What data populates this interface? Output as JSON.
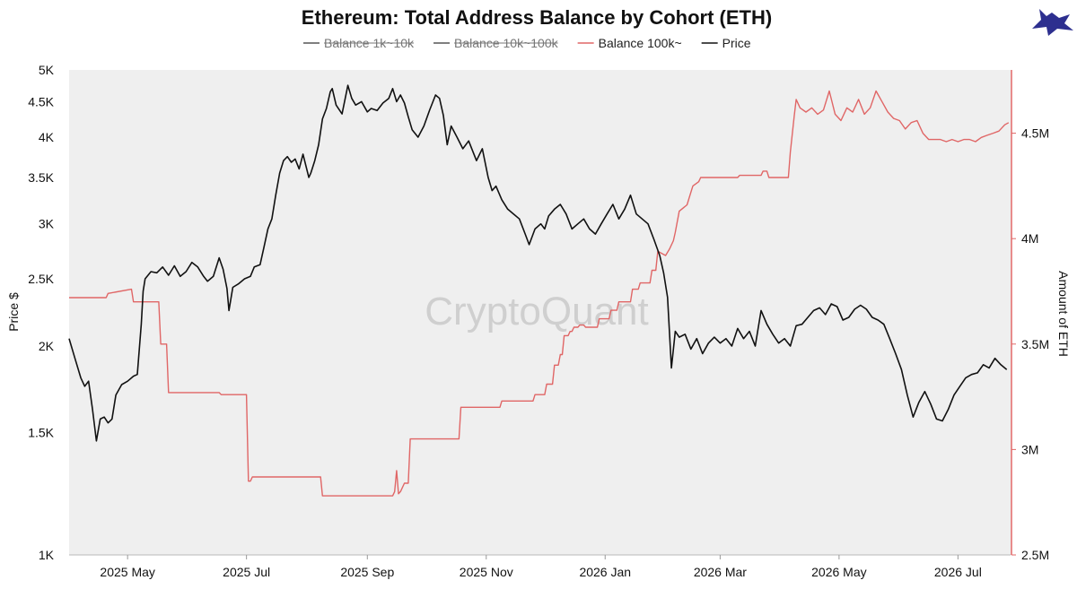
{
  "chart_data": {
    "type": "line",
    "title": "Ethereum: Total Address Balance by Cohort (ETH)",
    "watermark": "CryptoQuant",
    "legend": [
      {
        "label": "Balance 1k~10k",
        "color": "#555555",
        "hidden": true
      },
      {
        "label": "Balance 10k~100k",
        "color": "#555555",
        "hidden": true
      },
      {
        "label": "Balance 100k~",
        "color": "#e06666",
        "hidden": false
      },
      {
        "label": "Price",
        "color": "#111111",
        "hidden": false
      }
    ],
    "xlim": [
      "2025-04-01",
      "2026-07-28"
    ],
    "x_ticks": [
      {
        "date": "2025-05-01",
        "label": "2025 May"
      },
      {
        "date": "2025-07-01",
        "label": "2025 Jul"
      },
      {
        "date": "2025-09-01",
        "label": "2025 Sep"
      },
      {
        "date": "2025-11-01",
        "label": "2025 Nov"
      },
      {
        "date": "2026-01-01",
        "label": "2026 Jan"
      },
      {
        "date": "2026-03-01",
        "label": "2026 Mar"
      },
      {
        "date": "2026-05-01",
        "label": "2026 May"
      },
      {
        "date": "2026-07-01",
        "label": "2026 Jul"
      }
    ],
    "y_left": {
      "label": "Price $",
      "scale": "log",
      "lim": [
        1000,
        5000
      ],
      "ticks": [
        {
          "value": 1000,
          "label": "1K"
        },
        {
          "value": 1500,
          "label": "1.5K"
        },
        {
          "value": 2000,
          "label": "2K"
        },
        {
          "value": 2500,
          "label": "2.5K"
        },
        {
          "value": 3000,
          "label": "3K"
        },
        {
          "value": 3500,
          "label": "3.5K"
        },
        {
          "value": 4000,
          "label": "4K"
        },
        {
          "value": 4500,
          "label": "4.5K"
        },
        {
          "value": 5000,
          "label": "5K"
        }
      ]
    },
    "y_right": {
      "label": "Amount of ETH",
      "scale": "linear",
      "lim": [
        2500000,
        4800000
      ],
      "ticks": [
        {
          "value": 2500000,
          "label": "2.5M"
        },
        {
          "value": 3000000,
          "label": "3M"
        },
        {
          "value": 3500000,
          "label": "3.5M"
        },
        {
          "value": 4000000,
          "label": "4M"
        },
        {
          "value": 4500000,
          "label": "4.5M"
        }
      ]
    },
    "series": [
      {
        "name": "Price",
        "axis": "left",
        "color": "#111111",
        "x": [
          "2025-04-01",
          "2025-04-04",
          "2025-04-07",
          "2025-04-09",
          "2025-04-11",
          "2025-04-13",
          "2025-04-15",
          "2025-04-17",
          "2025-04-19",
          "2025-04-21",
          "2025-04-23",
          "2025-04-25",
          "2025-04-28",
          "2025-05-01",
          "2025-05-04",
          "2025-05-06",
          "2025-05-08",
          "2025-05-09",
          "2025-05-10",
          "2025-05-13",
          "2025-05-16",
          "2025-05-19",
          "2025-05-22",
          "2025-05-25",
          "2025-05-28",
          "2025-05-31",
          "2025-06-03",
          "2025-06-06",
          "2025-06-09",
          "2025-06-11",
          "2025-06-14",
          "2025-06-17",
          "2025-06-19",
          "2025-06-21",
          "2025-06-22",
          "2025-06-24",
          "2025-06-27",
          "2025-06-30",
          "2025-07-03",
          "2025-07-05",
          "2025-07-08",
          "2025-07-10",
          "2025-07-12",
          "2025-07-14",
          "2025-07-16",
          "2025-07-18",
          "2025-07-20",
          "2025-07-22",
          "2025-07-24",
          "2025-07-26",
          "2025-07-28",
          "2025-07-30",
          "2025-08-02",
          "2025-08-03",
          "2025-08-05",
          "2025-08-07",
          "2025-08-09",
          "2025-08-11",
          "2025-08-13",
          "2025-08-14",
          "2025-08-16",
          "2025-08-19",
          "2025-08-22",
          "2025-08-24",
          "2025-08-26",
          "2025-08-29",
          "2025-09-01",
          "2025-09-03",
          "2025-09-06",
          "2025-09-09",
          "2025-09-12",
          "2025-09-14",
          "2025-09-16",
          "2025-09-18",
          "2025-09-20",
          "2025-09-22",
          "2025-09-24",
          "2025-09-27",
          "2025-09-30",
          "2025-10-03",
          "2025-10-06",
          "2025-10-08",
          "2025-10-10",
          "2025-10-12",
          "2025-10-14",
          "2025-10-17",
          "2025-10-20",
          "2025-10-23",
          "2025-10-27",
          "2025-10-30",
          "2025-11-02",
          "2025-11-04",
          "2025-11-06",
          "2025-11-09",
          "2025-11-12",
          "2025-11-15",
          "2025-11-18",
          "2025-11-21",
          "2025-11-23",
          "2025-11-26",
          "2025-11-29",
          "2025-12-01",
          "2025-12-03",
          "2025-12-06",
          "2025-12-09",
          "2025-12-12",
          "2025-12-15",
          "2025-12-18",
          "2025-12-21",
          "2025-12-24",
          "2025-12-27",
          "2025-12-30",
          "2026-01-02",
          "2026-01-05",
          "2026-01-08",
          "2026-01-11",
          "2026-01-14",
          "2026-01-17",
          "2026-01-20",
          "2026-01-23",
          "2026-01-26",
          "2026-01-29",
          "2026-01-31",
          "2026-02-02",
          "2026-02-04",
          "2026-02-06",
          "2026-02-08",
          "2026-02-11",
          "2026-02-14",
          "2026-02-17",
          "2026-02-20",
          "2026-02-23",
          "2026-02-26",
          "2026-03-01",
          "2026-03-04",
          "2026-03-07",
          "2026-03-10",
          "2026-03-13",
          "2026-03-16",
          "2026-03-19",
          "2026-03-22",
          "2026-03-25",
          "2026-03-28",
          "2026-03-31",
          "2026-04-03",
          "2026-04-06",
          "2026-04-09",
          "2026-04-12",
          "2026-04-15",
          "2026-04-18",
          "2026-04-21",
          "2026-04-24",
          "2026-04-27",
          "2026-04-30",
          "2026-05-03",
          "2026-05-06",
          "2026-05-09",
          "2026-05-12",
          "2026-05-15",
          "2026-05-18",
          "2026-05-21",
          "2026-05-24",
          "2026-05-27",
          "2026-05-30",
          "2026-06-02",
          "2026-06-05",
          "2026-06-08",
          "2026-06-11",
          "2026-06-14",
          "2026-06-17",
          "2026-06-20",
          "2026-06-23",
          "2026-06-26",
          "2026-06-29",
          "2026-07-02",
          "2026-07-05",
          "2026-07-08",
          "2026-07-11",
          "2026-07-14",
          "2026-07-17",
          "2026-07-20",
          "2026-07-23",
          "2026-07-26"
        ],
        "y": [
          2050,
          1920,
          1800,
          1750,
          1780,
          1620,
          1460,
          1570,
          1580,
          1550,
          1570,
          1700,
          1760,
          1780,
          1810,
          1820,
          2150,
          2400,
          2500,
          2560,
          2550,
          2600,
          2530,
          2610,
          2520,
          2560,
          2640,
          2600,
          2520,
          2480,
          2520,
          2680,
          2580,
          2420,
          2250,
          2430,
          2460,
          2500,
          2520,
          2600,
          2620,
          2780,
          2950,
          3050,
          3300,
          3550,
          3700,
          3750,
          3680,
          3720,
          3600,
          3780,
          3500,
          3550,
          3700,
          3900,
          4250,
          4400,
          4650,
          4700,
          4450,
          4320,
          4750,
          4550,
          4450,
          4500,
          4350,
          4400,
          4370,
          4480,
          4550,
          4700,
          4500,
          4600,
          4480,
          4280,
          4100,
          4000,
          4150,
          4380,
          4600,
          4550,
          4300,
          3900,
          4150,
          4000,
          3850,
          3950,
          3700,
          3850,
          3500,
          3350,
          3400,
          3250,
          3150,
          3100,
          3050,
          2900,
          2800,
          2950,
          3000,
          2950,
          3080,
          3150,
          3200,
          3100,
          2950,
          3000,
          3050,
          2950,
          2900,
          3000,
          3100,
          3200,
          3050,
          3150,
          3300,
          3100,
          3050,
          3000,
          2850,
          2700,
          2550,
          2350,
          1860,
          2100,
          2060,
          2080,
          1980,
          2050,
          1950,
          2020,
          2060,
          2020,
          2050,
          2000,
          2120,
          2050,
          2100,
          2000,
          2250,
          2150,
          2080,
          2020,
          2050,
          2000,
          2140,
          2150,
          2200,
          2250,
          2270,
          2220,
          2300,
          2280,
          2180,
          2200,
          2260,
          2290,
          2260,
          2200,
          2180,
          2150,
          2050,
          1950,
          1850,
          1700,
          1580,
          1660,
          1720,
          1650,
          1570,
          1560,
          1620,
          1700,
          1750,
          1800,
          1820,
          1830,
          1880,
          1860,
          1920,
          1880,
          1850
        ]
      },
      {
        "name": "Balance 100k~",
        "axis": "right",
        "color": "#e06666",
        "x": [
          "2025-04-01",
          "2025-04-20",
          "2025-04-21",
          "2025-05-03",
          "2025-05-04",
          "2025-05-17",
          "2025-05-18",
          "2025-05-21",
          "2025-05-22",
          "2025-06-17",
          "2025-06-18",
          "2025-07-01",
          "2025-07-02",
          "2025-07-03",
          "2025-07-04",
          "2025-08-08",
          "2025-08-09",
          "2025-09-14",
          "2025-09-15",
          "2025-09-16",
          "2025-09-17",
          "2025-09-18",
          "2025-09-20",
          "2025-09-22",
          "2025-09-23",
          "2025-10-18",
          "2025-10-19",
          "2025-11-08",
          "2025-11-09",
          "2025-11-25",
          "2025-11-26",
          "2025-12-01",
          "2025-12-02",
          "2025-12-05",
          "2025-12-06",
          "2025-12-08",
          "2025-12-09",
          "2025-12-10",
          "2025-12-11",
          "2025-12-13",
          "2025-12-14",
          "2025-12-15",
          "2025-12-16",
          "2025-12-18",
          "2025-12-19",
          "2025-12-21",
          "2025-12-22",
          "2025-12-28",
          "2025-12-29",
          "2026-01-03",
          "2026-01-04",
          "2026-01-07",
          "2026-01-08",
          "2026-01-14",
          "2026-01-15",
          "2026-01-18",
          "2026-01-19",
          "2026-01-24",
          "2026-01-25",
          "2026-01-27",
          "2026-01-28",
          "2026-02-01",
          "2026-02-03",
          "2026-02-05",
          "2026-02-06",
          "2026-02-08",
          "2026-02-12",
          "2026-02-14",
          "2026-02-15",
          "2026-02-18",
          "2026-02-19",
          "2026-03-10",
          "2026-03-11",
          "2026-03-22",
          "2026-03-23",
          "2026-03-25",
          "2026-03-26",
          "2026-04-05",
          "2026-04-06",
          "2026-04-08",
          "2026-04-09",
          "2026-04-11",
          "2026-04-14",
          "2026-04-17",
          "2026-04-20",
          "2026-04-23",
          "2026-04-26",
          "2026-04-29",
          "2026-05-02",
          "2026-05-05",
          "2026-05-08",
          "2026-05-11",
          "2026-05-14",
          "2026-05-17",
          "2026-05-20",
          "2026-05-23",
          "2026-05-26",
          "2026-05-29",
          "2026-06-01",
          "2026-06-04",
          "2026-06-07",
          "2026-06-10",
          "2026-06-13",
          "2026-06-16",
          "2026-06-19",
          "2026-06-22",
          "2026-06-25",
          "2026-06-28",
          "2026-07-01",
          "2026-07-04",
          "2026-07-07",
          "2026-07-10",
          "2026-07-13",
          "2026-07-16",
          "2026-07-19",
          "2026-07-22",
          "2026-07-25",
          "2026-07-27"
        ],
        "y": [
          3720000,
          3720000,
          3740000,
          3760000,
          3700000,
          3700000,
          3500000,
          3500000,
          3270000,
          3270000,
          3260000,
          3260000,
          2850000,
          2850000,
          2870000,
          2870000,
          2780000,
          2780000,
          2800000,
          2900000,
          2790000,
          2800000,
          2840000,
          2840000,
          3050000,
          3050000,
          3200000,
          3200000,
          3230000,
          3230000,
          3260000,
          3260000,
          3310000,
          3310000,
          3400000,
          3400000,
          3450000,
          3450000,
          3540000,
          3540000,
          3560000,
          3560000,
          3580000,
          3580000,
          3590000,
          3590000,
          3580000,
          3580000,
          3620000,
          3620000,
          3660000,
          3660000,
          3700000,
          3700000,
          3760000,
          3760000,
          3790000,
          3790000,
          3850000,
          3850000,
          3940000,
          3920000,
          3950000,
          3990000,
          4030000,
          4130000,
          4160000,
          4220000,
          4250000,
          4270000,
          4290000,
          4290000,
          4300000,
          4300000,
          4320000,
          4320000,
          4290000,
          4290000,
          4410000,
          4580000,
          4660000,
          4620000,
          4600000,
          4620000,
          4590000,
          4610000,
          4700000,
          4590000,
          4560000,
          4620000,
          4600000,
          4660000,
          4590000,
          4620000,
          4700000,
          4650000,
          4600000,
          4570000,
          4560000,
          4520000,
          4550000,
          4560000,
          4500000,
          4470000,
          4470000,
          4470000,
          4460000,
          4470000,
          4460000,
          4470000,
          4470000,
          4460000,
          4480000,
          4490000,
          4500000,
          4510000,
          4540000,
          4550000
        ]
      }
    ]
  }
}
